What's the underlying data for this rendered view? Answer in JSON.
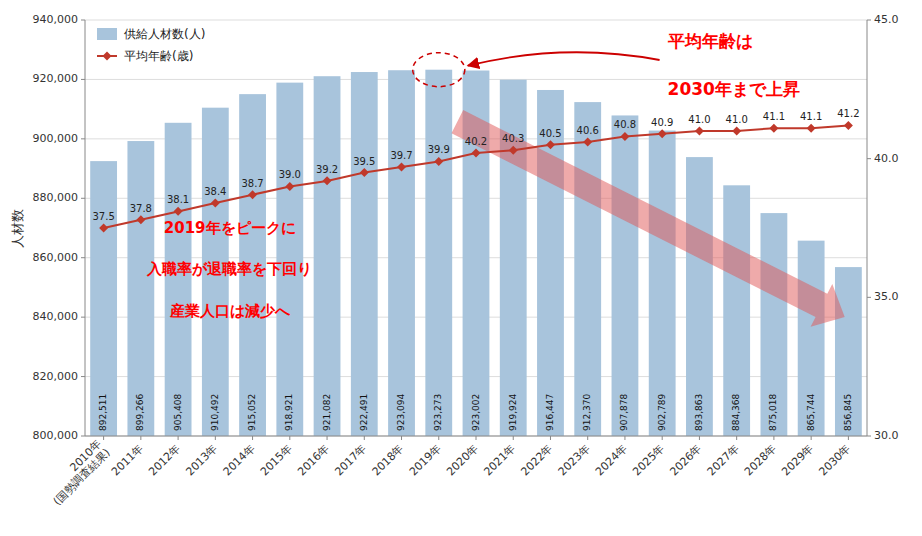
{
  "chart_data": {
    "type": "bar",
    "categories": [
      "2010年\n(国勢調査結果)",
      "2011年",
      "2012年",
      "2013年",
      "2014年",
      "2015年",
      "2016年",
      "2017年",
      "2018年",
      "2019年",
      "2020年",
      "2021年",
      "2022年",
      "2023年",
      "2024年",
      "2025年",
      "2026年",
      "2027年",
      "2028年",
      "2029年",
      "2030年"
    ],
    "series": [
      {
        "name": "供給人材数(人)",
        "type": "bar",
        "color": "#a8c4dc",
        "values": [
          892511,
          899266,
          905408,
          910492,
          915052,
          918921,
          921082,
          922491,
          923094,
          923273,
          923002,
          919924,
          916447,
          912370,
          907878,
          902789,
          893863,
          884368,
          875018,
          865744,
          856845
        ],
        "value_labels": [
          "892,511",
          "899,266",
          "905,408",
          "910,492",
          "915,052",
          "918,921",
          "921,082",
          "922,491",
          "923,094",
          "923,273",
          "923,002",
          "919,924",
          "916,447",
          "912,370",
          "907,878",
          "902,789",
          "893,863",
          "884,368",
          "875,018",
          "865,744",
          "856,845"
        ]
      },
      {
        "name": "平均年齢(歳)",
        "type": "line",
        "axis": "y2",
        "color": "#c0392b",
        "marker": "diamond",
        "values": [
          37.5,
          37.8,
          38.1,
          38.4,
          38.7,
          39.0,
          39.2,
          39.5,
          39.7,
          39.9,
          40.2,
          40.3,
          40.5,
          40.6,
          40.8,
          40.9,
          41.0,
          41.0,
          41.1,
          41.1,
          41.2
        ],
        "value_labels": [
          "37.5",
          "37.8",
          "38.1",
          "38.4",
          "38.7",
          "39.0",
          "39.2",
          "39.5",
          "39.7",
          "39.9",
          "40.2",
          "40.3",
          "40.5",
          "40.6",
          "40.8",
          "40.9",
          "41.0",
          "41.0",
          "41.1",
          "41.1",
          "41.2"
        ]
      }
    ],
    "ylabel": "人材数",
    "ylim": [
      800000,
      940000
    ],
    "yticks": [
      {
        "value": 800000,
        "label": "800,000"
      },
      {
        "value": 820000,
        "label": "820,000"
      },
      {
        "value": 840000,
        "label": "840,000"
      },
      {
        "value": 860000,
        "label": "860,000"
      },
      {
        "value": 880000,
        "label": "880,000"
      },
      {
        "value": 900000,
        "label": "900,000"
      },
      {
        "value": 920000,
        "label": "920,000"
      },
      {
        "value": 940000,
        "label": "940,000"
      }
    ],
    "y2lim": [
      30.0,
      45.0
    ],
    "y2ticks": [
      {
        "value": 30,
        "label": "30.0"
      },
      {
        "value": 35,
        "label": "35.0"
      },
      {
        "value": 40,
        "label": "40.0"
      },
      {
        "value": 45,
        "label": "45.0"
      }
    ],
    "grid": true,
    "legend": "upper-left",
    "data_labels": true,
    "annotations": [
      "平均年齢は",
      "2030年まで上昇",
      "2019年をピークに",
      "入職率が退職率を下回り",
      "産業人口は減少へ"
    ]
  }
}
